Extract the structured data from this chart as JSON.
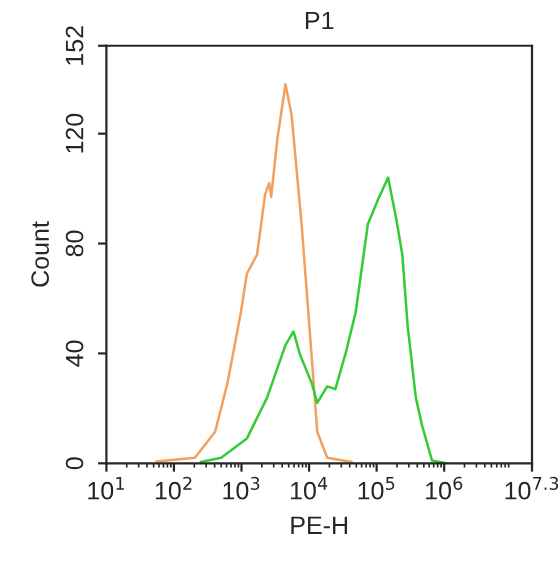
{
  "chart_data": {
    "type": "line",
    "title": "P1",
    "xlabel": "PE-H",
    "ylabel": "Count",
    "log": "x",
    "grid": false,
    "legend": false,
    "marker": "none",
    "line_style": "solid",
    "xlim": [
      10,
      19952623
    ],
    "xticks": [
      {
        "value": 10,
        "label": "10$^{1}$"
      },
      {
        "value": 100,
        "label": "10$^{2}$"
      },
      {
        "value": 1000,
        "label": "10$^{3}$"
      },
      {
        "value": 10000,
        "label": "10$^{4}$"
      },
      {
        "value": 100000,
        "label": "10$^{5}$"
      },
      {
        "value": 1000000,
        "label": "10$^{6}$"
      },
      {
        "value": 19952623,
        "label": "10$^{7.3}$"
      }
    ],
    "ylim": [
      0,
      152
    ],
    "yticks": [
      0,
      40,
      80,
      120,
      152
    ],
    "series": [
      {
        "color": "#f0a060",
        "x": [
          55,
          204,
          407,
          617,
          980,
          1200,
          1700,
          2240,
          2570,
          2750,
          3390,
          4470,
          5500,
          7760,
          11000,
          13200,
          18600,
          42700
        ],
        "values": [
          0.7,
          2,
          11.5,
          29,
          55,
          69,
          76,
          98,
          102,
          97,
          118,
          138,
          127,
          87,
          38,
          11.5,
          2,
          0.5
        ]
      },
      {
        "color": "#33cc33",
        "x": [
          250,
          500,
          1200,
          2400,
          4470,
          5890,
          7240,
          11000,
          13200,
          18600,
          24500,
          34700,
          49000,
          74100,
          105000,
          148000,
          195000,
          240000,
          288000,
          380000,
          468000,
          661000,
          1070000
        ],
        "values": [
          0.5,
          2,
          9,
          24,
          43,
          48,
          40,
          29,
          22,
          28,
          27,
          40,
          55,
          87,
          96,
          104,
          89,
          76,
          50,
          24,
          14,
          1,
          0
        ]
      }
    ]
  }
}
